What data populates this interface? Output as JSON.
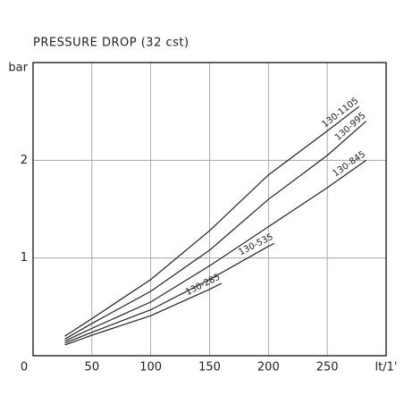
{
  "chart_data": {
    "type": "line",
    "title": "PRESSURE DROP (32 cst)",
    "xlim": [
      0,
      300
    ],
    "ylim": [
      0,
      3
    ],
    "xticks": [
      0,
      50,
      100,
      150,
      200,
      250,
      {
        "value": 300,
        "label": "lt/1'"
      }
    ],
    "yticks": [
      0,
      1,
      2,
      {
        "value": 3,
        "label": "bar"
      }
    ],
    "grid": true,
    "series": [
      {
        "name": "130-1105",
        "color": "#222222",
        "x": [
          27,
          50,
          100,
          150,
          200,
          250,
          277
        ],
        "values": [
          0.2,
          0.38,
          0.78,
          1.28,
          1.85,
          2.3,
          2.55
        ]
      },
      {
        "name": "130-995",
        "color": "#222222",
        "x": [
          27,
          50,
          100,
          150,
          200,
          250,
          283
        ],
        "values": [
          0.17,
          0.33,
          0.66,
          1.08,
          1.6,
          2.05,
          2.4
        ]
      },
      {
        "name": "130-845",
        "color": "#222222",
        "x": [
          27,
          50,
          100,
          150,
          200,
          250,
          283
        ],
        "values": [
          0.15,
          0.28,
          0.55,
          0.92,
          1.32,
          1.72,
          2.0
        ]
      },
      {
        "name": "130-535",
        "color": "#222222",
        "x": [
          27,
          50,
          100,
          150,
          200,
          205
        ],
        "values": [
          0.13,
          0.24,
          0.47,
          0.78,
          1.12,
          1.15
        ]
      },
      {
        "name": "130-285",
        "color": "#222222",
        "x": [
          27,
          50,
          100,
          150,
          160
        ],
        "values": [
          0.11,
          0.21,
          0.41,
          0.68,
          0.74
        ]
      }
    ]
  }
}
